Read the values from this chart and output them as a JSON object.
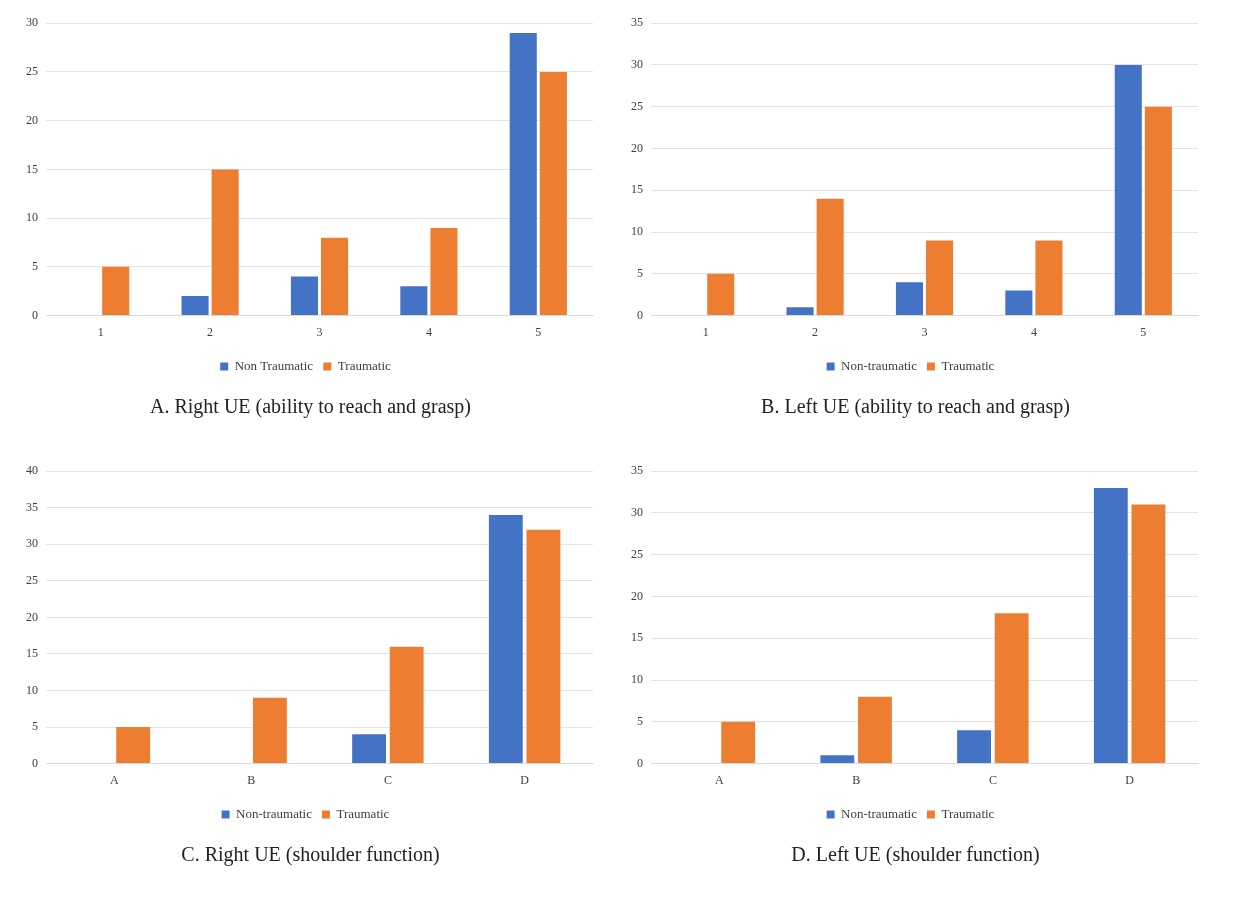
{
  "chart_data": [
    {
      "type": "bar",
      "title": "A. Right UE (ability to reach and grasp)",
      "categories": [
        "1",
        "2",
        "3",
        "4",
        "5"
      ],
      "series": [
        {
          "name": "Non Traumatic",
          "color": "#4472c4",
          "values": [
            0,
            2,
            4,
            3,
            29
          ]
        },
        {
          "name": "Traumatic",
          "color": "#ed7d31",
          "values": [
            5,
            15,
            8,
            9,
            25
          ]
        }
      ],
      "ylim": [
        0,
        30
      ],
      "yticks": [
        0,
        5,
        10,
        15,
        20,
        25,
        30
      ],
      "grid": "y",
      "legend": "bottom"
    },
    {
      "type": "bar",
      "title": "B. Left UE (ability to reach and grasp)",
      "categories": [
        "1",
        "2",
        "3",
        "4",
        "5"
      ],
      "series": [
        {
          "name": "Non-traumatic",
          "color": "#4472c4",
          "values": [
            0,
            1,
            4,
            3,
            30
          ]
        },
        {
          "name": "Traumatic",
          "color": "#ed7d31",
          "values": [
            5,
            14,
            9,
            9,
            25
          ]
        }
      ],
      "ylim": [
        0,
        35
      ],
      "yticks": [
        0,
        5,
        10,
        15,
        20,
        25,
        30,
        35
      ],
      "grid": "y",
      "legend": "bottom"
    },
    {
      "type": "bar",
      "title": "C. Right UE (shoulder function)",
      "categories": [
        "A",
        "B",
        "C",
        "D"
      ],
      "series": [
        {
          "name": "Non-traumatic",
          "color": "#4472c4",
          "values": [
            0,
            0,
            4,
            34
          ]
        },
        {
          "name": "Traumatic",
          "color": "#ed7d31",
          "values": [
            5,
            9,
            16,
            32
          ]
        }
      ],
      "ylim": [
        0,
        40
      ],
      "yticks": [
        0,
        5,
        10,
        15,
        20,
        25,
        30,
        35,
        40
      ],
      "grid": "y",
      "legend": "bottom"
    },
    {
      "type": "bar",
      "title": "D. Left UE (shoulder function)",
      "categories": [
        "A",
        "B",
        "C",
        "D"
      ],
      "series": [
        {
          "name": "Non-traumatic",
          "color": "#4472c4",
          "values": [
            0,
            1,
            4,
            33
          ]
        },
        {
          "name": "Traumatic",
          "color": "#ed7d31",
          "values": [
            5,
            8,
            18,
            31
          ]
        }
      ],
      "ylim": [
        0,
        35
      ],
      "yticks": [
        0,
        5,
        10,
        15,
        20,
        25,
        30,
        35
      ],
      "grid": "y",
      "legend": "bottom"
    }
  ]
}
